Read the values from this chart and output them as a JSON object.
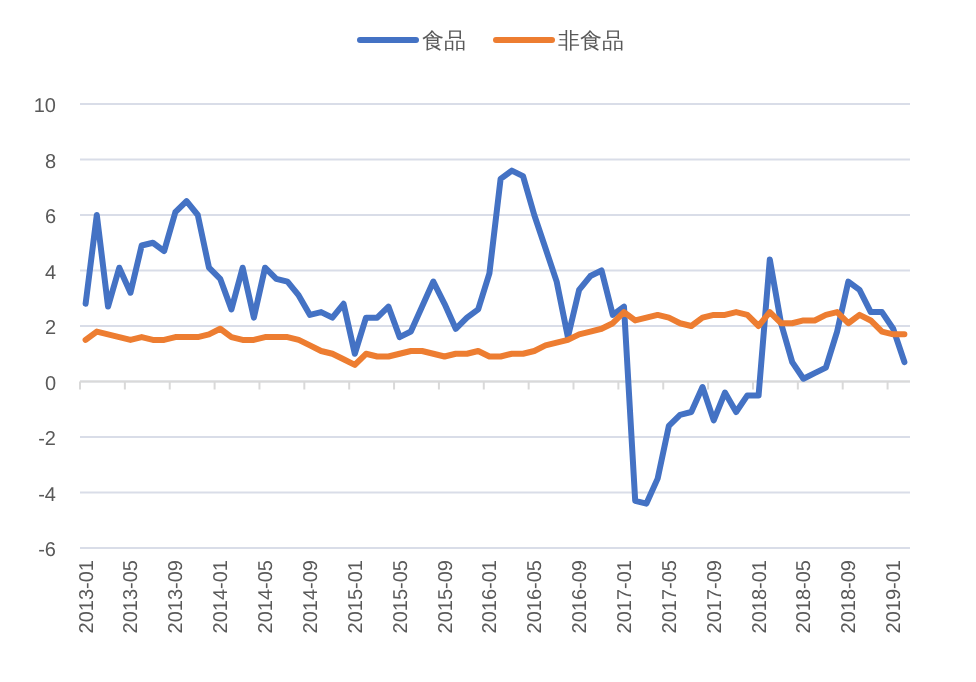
{
  "chart_data": {
    "type": "line",
    "categories": [
      "2013-01",
      null,
      null,
      null,
      "2013-05",
      null,
      null,
      null,
      "2013-09",
      null,
      null,
      null,
      "2014-01",
      null,
      null,
      null,
      "2014-05",
      null,
      null,
      null,
      "2014-09",
      null,
      null,
      null,
      "2015-01",
      null,
      null,
      null,
      "2015-05",
      null,
      null,
      null,
      "2015-09",
      null,
      null,
      null,
      "2016-01",
      null,
      null,
      null,
      "2016-05",
      null,
      null,
      null,
      "2016-09",
      null,
      null,
      null,
      "2017-01",
      null,
      null,
      null,
      "2017-05",
      null,
      null,
      null,
      "2017-09",
      null,
      null,
      null,
      "2018-01",
      null,
      null,
      null,
      "2018-05",
      null,
      null,
      null,
      "2018-09",
      null,
      null,
      null,
      "2019-01",
      null
    ],
    "series": [
      {
        "name": "食品",
        "color": "#4472c4",
        "values": [
          2.8,
          6.0,
          2.7,
          4.1,
          3.2,
          4.9,
          5.0,
          4.7,
          6.1,
          6.5,
          6.0,
          4.1,
          3.7,
          2.6,
          4.1,
          2.3,
          4.1,
          3.7,
          3.6,
          3.1,
          2.4,
          2.5,
          2.3,
          2.8,
          1.0,
          2.3,
          2.3,
          2.7,
          1.6,
          1.8,
          2.7,
          3.6,
          2.8,
          1.9,
          2.3,
          2.6,
          3.9,
          7.3,
          7.6,
          7.4,
          6.0,
          4.8,
          3.6,
          1.6,
          3.3,
          3.8,
          4.0,
          2.4,
          2.7,
          -4.3,
          -4.4,
          -3.5,
          -1.6,
          -1.2,
          -1.1,
          -0.2,
          -1.4,
          -0.4,
          -1.1,
          -0.5,
          -0.5,
          4.4,
          2.1,
          0.7,
          0.1,
          0.3,
          0.5,
          1.8,
          3.6,
          3.3,
          2.5,
          2.5,
          1.9,
          0.7
        ]
      },
      {
        "name": "非食品",
        "color": "#ed7d31",
        "values": [
          1.5,
          1.8,
          1.7,
          1.6,
          1.5,
          1.6,
          1.5,
          1.5,
          1.6,
          1.6,
          1.6,
          1.7,
          1.9,
          1.6,
          1.5,
          1.5,
          1.6,
          1.6,
          1.6,
          1.5,
          1.3,
          1.1,
          1.0,
          0.8,
          0.6,
          1.0,
          0.9,
          0.9,
          1.0,
          1.1,
          1.1,
          1.0,
          0.9,
          1.0,
          1.0,
          1.1,
          0.9,
          0.9,
          1.0,
          1.0,
          1.1,
          1.3,
          1.4,
          1.5,
          1.7,
          1.8,
          1.9,
          2.1,
          2.5,
          2.2,
          2.3,
          2.4,
          2.3,
          2.1,
          2.0,
          2.3,
          2.4,
          2.4,
          2.5,
          2.4,
          2.0,
          2.5,
          2.1,
          2.1,
          2.2,
          2.2,
          2.4,
          2.5,
          2.1,
          2.4,
          2.2,
          1.8,
          1.7,
          1.7
        ]
      }
    ],
    "ylim": [
      -6,
      10
    ],
    "yticks": [
      -6,
      -4,
      -2,
      0,
      2,
      4,
      6,
      8,
      10
    ],
    "grid": "y",
    "legend": "top",
    "line_style": "solid"
  }
}
